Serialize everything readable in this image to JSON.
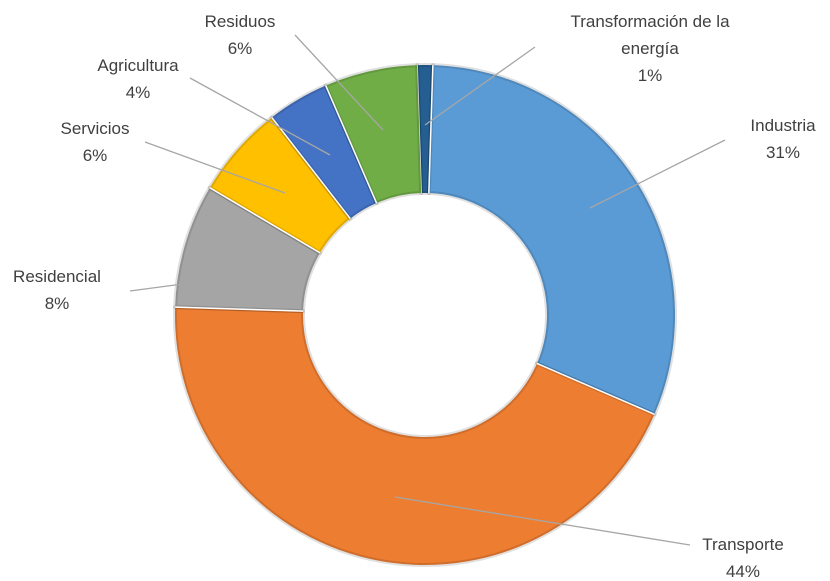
{
  "chart_data": {
    "type": "donut",
    "categories": [
      "Transformación de la energía",
      "Industria",
      "Transporte",
      "Residencial",
      "Servicios",
      "Agricultura",
      "Residuos"
    ],
    "values": [
      1,
      31,
      44,
      8,
      6,
      4,
      6
    ],
    "value_labels": [
      "1%",
      "31%",
      "44%",
      "8%",
      "6%",
      "4%",
      "6%"
    ],
    "colors": [
      "#255e91",
      "#5b9bd5",
      "#ed7d31",
      "#a5a5a5",
      "#ffc000",
      "#4472c4",
      "#70ad47"
    ]
  }
}
